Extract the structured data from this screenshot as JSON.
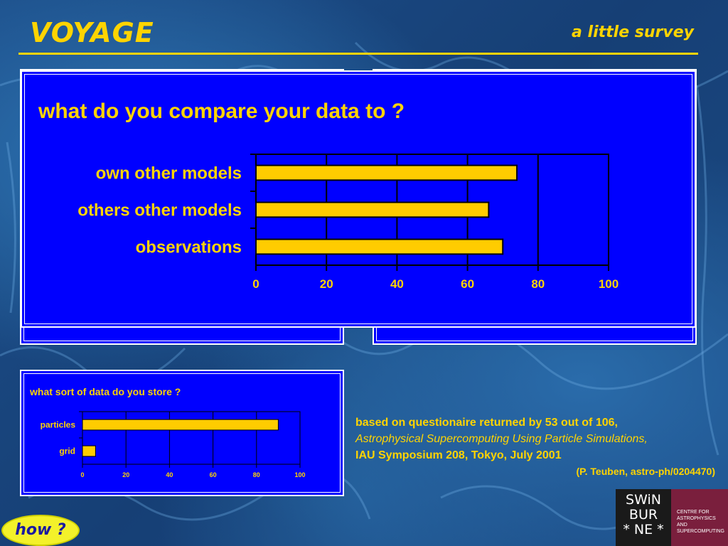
{
  "header": {
    "title": "VOYAGE",
    "subtitle": "a little survey"
  },
  "main_chart": {
    "title": "what do you compare your data to ?"
  },
  "small_chart": {
    "title": "what sort of data do you store ?"
  },
  "note": {
    "line1": "based on questionaire returned by 53 out of 106,",
    "line2": "Astrophysical Supercomputing Using Particle Simulations,",
    "line3": "IAU Symposium 208, Tokyo, July 2001",
    "citation": "(P. Teuben, astro-ph/0204470)"
  },
  "nav": {
    "how_label": "how ?"
  },
  "logo": {
    "wordmark_lines": [
      "SWiN",
      "BUR",
      "* NE *"
    ],
    "centre_text": "CENTRE FOR ASTROPHYSICS AND SUPERCOMPUTING"
  },
  "colors": {
    "accent": "#ffd400",
    "panel": "#0000ff",
    "bar": "#ffcc00"
  },
  "chart_data": [
    {
      "type": "bar",
      "orientation": "horizontal",
      "title": "what do you compare your data to ?",
      "categories": [
        "own other models",
        "others other models",
        "observations"
      ],
      "values": [
        74,
        66,
        70
      ],
      "xlim": [
        0,
        100
      ],
      "xticks": [
        0,
        20,
        40,
        60,
        80,
        100
      ],
      "grid": true
    },
    {
      "type": "bar",
      "orientation": "horizontal",
      "title": "what sort of data do you store ?",
      "categories": [
        "particles",
        "grid"
      ],
      "values": [
        90,
        6
      ],
      "xlim": [
        0,
        100
      ],
      "xticks": [
        0,
        20,
        40,
        60,
        80,
        100
      ],
      "grid": true
    }
  ]
}
